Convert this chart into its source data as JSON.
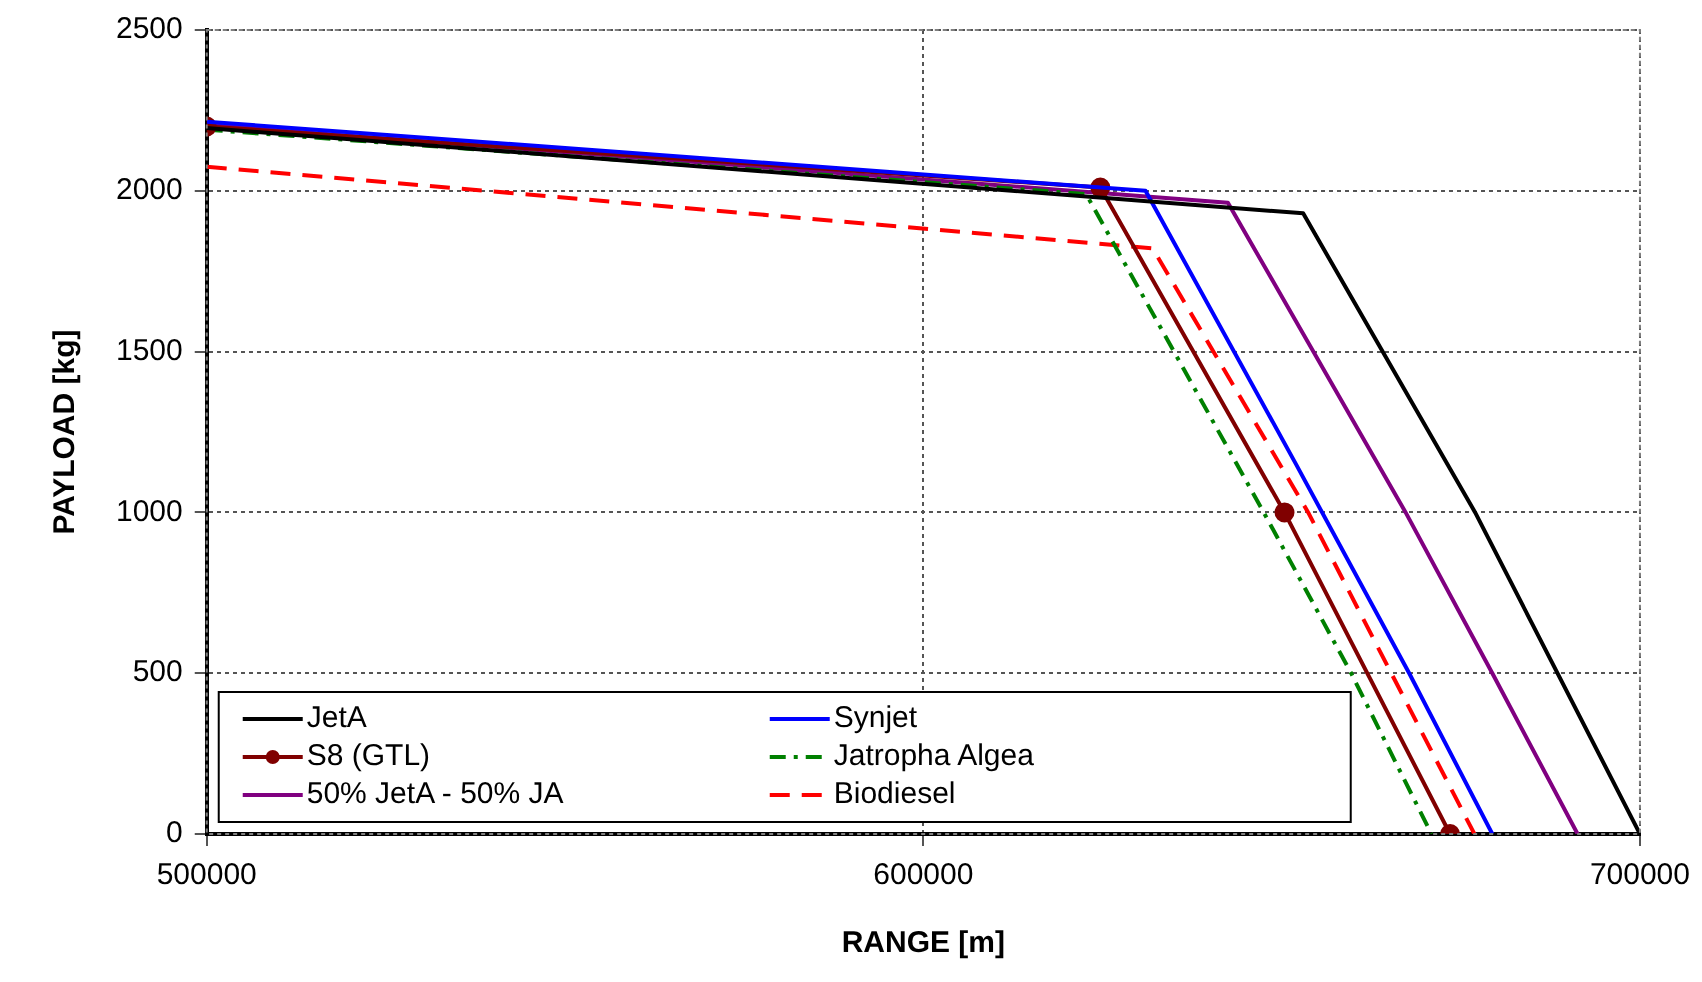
{
  "chart_data": {
    "type": "line",
    "xlabel": "RANGE [m]",
    "ylabel": "PAYLOAD [kg]",
    "xlim": [
      500000,
      700000
    ],
    "xticks": [
      500000,
      600000,
      700000
    ],
    "ylim": [
      0,
      2500
    ],
    "yticks": [
      0,
      500,
      1000,
      1500,
      2000,
      2500
    ],
    "grid": true,
    "legend": "bottom left",
    "marker": "none",
    "series": [
      {
        "name": "JetA",
        "color": "#000000",
        "line_style": "solid",
        "x": [
          500000,
          653000,
          677000,
          700000
        ],
        "values": [
          2195,
          1930,
          1000,
          0
        ]
      },
      {
        "name": "Synjet",
        "color": "#0000ff",
        "line_style": "solid",
        "x": [
          500000,
          631000,
          652000,
          667800,
          679400
        ],
        "values": [
          2215,
          2000,
          1150,
          500,
          0
        ]
      },
      {
        "name": "S8 (GTL)",
        "color": "#800000",
        "line_style": "solid",
        "marker": "circle",
        "x": [
          500000,
          624700,
          650400,
          673500
        ],
        "values": [
          2200,
          2010,
          1000,
          0
        ]
      },
      {
        "name": "Jatropha Algea",
        "color": "#008000",
        "line_style": "dashdot",
        "x": [
          500000,
          622700,
          647500,
          659700,
          670900
        ],
        "values": [
          2190,
          1990,
          1000,
          500,
          0
        ]
      },
      {
        "name": "50% JetA - 50% JA",
        "color": "#800080",
        "line_style": "solid",
        "x": [
          500000,
          642500,
          667300,
          679400,
          691300
        ],
        "values": [
          2205,
          1963,
          1000,
          500,
          0
        ]
      },
      {
        "name": "Biodiesel",
        "color": "#ff0000",
        "line_style": "dashed",
        "x": [
          500000,
          632000,
          653700,
          665300,
          676900
        ],
        "values": [
          2075,
          1821,
          1000,
          500,
          0
        ]
      }
    ]
  }
}
